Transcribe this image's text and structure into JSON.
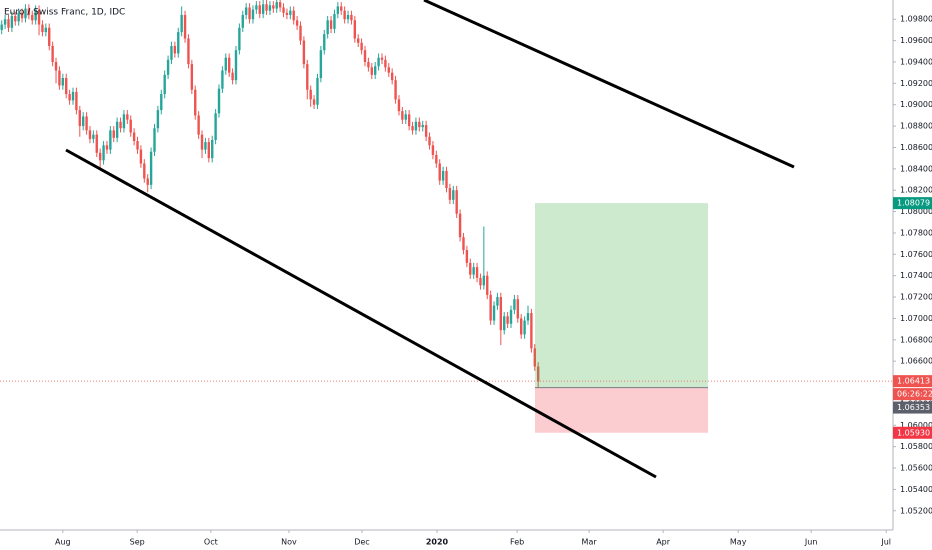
{
  "chart_data": {
    "type": "candlestick",
    "title": "Euro / Swiss Franc, 1D, IDC",
    "up_color": "#26a69a",
    "down_color": "#ef5350",
    "grid": false,
    "xlim": [
      0,
      263
    ],
    "ylim": [
      1.0502,
      1.0998
    ],
    "xticks": [
      {
        "value": 18.5,
        "label": "Aug"
      },
      {
        "value": 40.4,
        "label": "Sep"
      },
      {
        "value": 62.1,
        "label": "Oct"
      },
      {
        "value": 85.1,
        "label": "Nov"
      },
      {
        "value": 106.6,
        "label": "Dec"
      },
      {
        "value": 128.7,
        "label": "2020"
      },
      {
        "value": 152.3,
        "label": "Feb"
      },
      {
        "value": 173.5,
        "label": "Mar"
      },
      {
        "value": 195.3,
        "label": "Apr"
      },
      {
        "value": 217.4,
        "label": "May"
      },
      {
        "value": 238.9,
        "label": "Jun"
      },
      {
        "value": 261,
        "label": "Jul"
      }
    ],
    "yticks": [
      {
        "value": 1.052,
        "label": "1.05200"
      },
      {
        "value": 1.054,
        "label": "1.05400"
      },
      {
        "value": 1.056,
        "label": "1.05600"
      },
      {
        "value": 1.058,
        "label": "1.05800"
      },
      {
        "value": 1.06,
        "label": "1.06000"
      },
      {
        "value": 1.062,
        "label": "1.06200"
      },
      {
        "value": 1.064,
        "label": "1.06400"
      },
      {
        "value": 1.066,
        "label": "1.06600"
      },
      {
        "value": 1.068,
        "label": "1.06800"
      },
      {
        "value": 1.07,
        "label": "1.07000"
      },
      {
        "value": 1.072,
        "label": "1.07200"
      },
      {
        "value": 1.074,
        "label": "1.07400"
      },
      {
        "value": 1.076,
        "label": "1.07600"
      },
      {
        "value": 1.078,
        "label": "1.07800"
      },
      {
        "value": 1.08,
        "label": "1.08000"
      },
      {
        "value": 1.082,
        "label": "1.08200"
      },
      {
        "value": 1.084,
        "label": "1.08400"
      },
      {
        "value": 1.086,
        "label": "1.08600"
      },
      {
        "value": 1.088,
        "label": "1.08800"
      },
      {
        "value": 1.09,
        "label": "1.09000"
      },
      {
        "value": 1.092,
        "label": "1.09200"
      },
      {
        "value": 1.094,
        "label": "1.09400"
      },
      {
        "value": 1.096,
        "label": "1.09600"
      },
      {
        "value": 1.098,
        "label": "1.09800"
      }
    ],
    "open": [
      1.097,
      1.0975,
      1.098,
      1.0972,
      1.0983,
      1.0978,
      1.0986,
      1.0981,
      1.099,
      1.0984,
      1.0979,
      1.0989,
      1.0975,
      1.0968,
      1.0972,
      1.0955,
      1.094,
      1.0932,
      1.0918,
      1.0925,
      1.091,
      1.0904,
      1.0912,
      1.0895,
      1.088,
      1.0889,
      1.0876,
      1.0868,
      1.0872,
      1.0855,
      1.0848,
      1.0862,
      1.0858,
      1.0876,
      1.0869,
      1.0884,
      1.0878,
      1.0891,
      1.0886,
      1.0874,
      1.0866,
      1.0858,
      1.0845,
      1.0831,
      1.0825,
      1.0856,
      1.0878,
      1.0895,
      1.091,
      1.0928,
      1.0942,
      1.0955,
      1.0948,
      1.0968,
      1.0984,
      1.0962,
      1.0938,
      1.0914,
      1.089,
      1.0872,
      1.0858,
      1.0865,
      1.085,
      1.0867,
      1.0892,
      1.0915,
      1.0932,
      1.0944,
      1.093,
      1.0923,
      1.0951,
      1.0972,
      1.0984,
      1.0991,
      1.098,
      1.0989,
      1.0993,
      1.0985,
      1.0994,
      1.0988,
      1.0993,
      1.099,
      1.0996,
      1.0991,
      1.0986,
      1.0984,
      1.0988,
      1.0979,
      1.0974,
      1.096,
      1.0938,
      1.0914,
      1.0905,
      1.09,
      1.0925,
      1.0951,
      1.0966,
      1.0979,
      1.0971,
      1.0985,
      1.0992,
      1.0988,
      1.098,
      1.0984,
      1.0979,
      1.0962,
      1.0958,
      1.0951,
      1.094,
      1.0935,
      1.0928,
      1.0936,
      1.0944,
      1.0942,
      1.0935,
      1.093,
      1.0923,
      1.0905,
      1.0894,
      1.0886,
      1.0891,
      1.088,
      1.0876,
      1.0884,
      1.0879,
      1.0881,
      1.087,
      1.0862,
      1.0853,
      1.0845,
      1.0829,
      1.0838,
      1.0822,
      1.0811,
      1.082,
      1.0798,
      1.0776,
      1.0764,
      1.0752,
      1.0741,
      1.0748,
      1.0738,
      1.0731,
      1.074,
      1.0722,
      1.0698,
      1.0712,
      1.072,
      1.0689,
      1.0702,
      1.0695,
      1.0708,
      1.0718,
      1.07,
      1.0685,
      1.0698,
      1.0705,
      1.0672,
      1.0655
    ],
    "high": [
      1.0979,
      1.0984,
      1.0984,
      1.0987,
      1.0987,
      1.099,
      1.099,
      1.0994,
      1.0994,
      1.0988,
      1.0993,
      1.0993,
      1.0979,
      1.0976,
      1.0976,
      1.0959,
      1.0944,
      1.0936,
      1.0929,
      1.0929,
      1.0914,
      1.0916,
      1.0916,
      1.0899,
      1.0893,
      1.0893,
      1.088,
      1.0876,
      1.0876,
      1.0859,
      1.0866,
      1.0866,
      1.088,
      1.088,
      1.0888,
      1.0888,
      1.0895,
      1.0895,
      1.089,
      1.0878,
      1.087,
      1.0862,
      1.0849,
      1.0835,
      1.086,
      1.0882,
      1.0899,
      1.0914,
      1.0932,
      1.0946,
      1.0959,
      1.0959,
      1.0972,
      1.0992,
      1.0988,
      1.0966,
      1.0942,
      1.0918,
      1.0894,
      1.0876,
      1.0869,
      1.0869,
      1.0871,
      1.0896,
      1.0919,
      1.0936,
      1.0948,
      1.0948,
      1.0934,
      1.0955,
      1.0976,
      1.0988,
      1.0995,
      1.0995,
      1.0993,
      1.0997,
      1.0997,
      1.0998,
      1.0998,
      1.0997,
      1.0997,
      1.1,
      1.1,
      1.0995,
      1.099,
      1.0992,
      1.0992,
      1.0983,
      1.0978,
      1.0964,
      1.0942,
      1.0918,
      1.0909,
      1.0929,
      1.0955,
      1.097,
      1.0983,
      1.0983,
      1.0989,
      1.0996,
      1.0996,
      1.0992,
      1.0988,
      1.0988,
      1.0983,
      1.0966,
      1.0962,
      1.0955,
      1.0944,
      1.0939,
      1.094,
      1.0948,
      1.0948,
      1.0946,
      1.0939,
      1.0934,
      1.0927,
      1.0909,
      1.0898,
      1.0895,
      1.0895,
      1.0884,
      1.0888,
      1.0888,
      1.0885,
      1.0885,
      1.0874,
      1.0866,
      1.0857,
      1.0849,
      1.0842,
      1.0842,
      1.0826,
      1.0824,
      1.0824,
      1.0802,
      1.078,
      1.0768,
      1.0756,
      1.0752,
      1.0752,
      1.0742,
      1.0786,
      1.0744,
      1.0726,
      1.0716,
      1.0724,
      1.0724,
      1.0706,
      1.0706,
      1.0712,
      1.0722,
      1.0722,
      1.0704,
      1.0702,
      1.0712,
      1.0709,
      1.0676,
      1.0659
    ],
    "low": [
      1.0966,
      1.0971,
      1.0968,
      1.0968,
      1.0974,
      1.0974,
      1.0977,
      1.0977,
      1.098,
      1.0975,
      1.0975,
      1.0965,
      1.0964,
      1.0964,
      1.0951,
      1.0936,
      1.092,
      1.0914,
      1.0914,
      1.0906,
      1.09,
      1.09,
      1.0891,
      1.087,
      1.0876,
      1.0872,
      1.0864,
      1.0864,
      1.0851,
      1.084,
      1.0844,
      1.0854,
      1.0854,
      1.0865,
      1.0865,
      1.0874,
      1.0874,
      1.0882,
      1.087,
      1.0862,
      1.0854,
      1.0841,
      1.0827,
      1.0818,
      1.0821,
      1.0852,
      1.0874,
      1.0891,
      1.0906,
      1.0924,
      1.0938,
      1.0944,
      1.0944,
      1.0964,
      1.0958,
      1.0934,
      1.091,
      1.0886,
      1.0868,
      1.085,
      1.0854,
      1.0846,
      1.0846,
      1.0863,
      1.0888,
      1.0911,
      1.0928,
      1.0926,
      1.0919,
      1.0919,
      1.0947,
      1.0968,
      1.098,
      1.0976,
      1.0976,
      1.0985,
      1.0981,
      1.0981,
      1.0984,
      1.0984,
      1.0986,
      1.0986,
      1.0987,
      1.0982,
      1.098,
      1.098,
      1.0975,
      1.097,
      1.0956,
      1.0934,
      1.0905,
      1.0898,
      1.0896,
      1.0896,
      1.0921,
      1.0947,
      1.0962,
      1.0967,
      1.0967,
      1.0981,
      1.0984,
      1.0976,
      1.0976,
      1.0975,
      1.0958,
      1.0954,
      1.0947,
      1.0936,
      1.0931,
      1.0924,
      1.0924,
      1.0932,
      1.0938,
      1.0931,
      1.0926,
      1.0919,
      1.0901,
      1.089,
      1.0882,
      1.0882,
      1.0876,
      1.0872,
      1.0872,
      1.0875,
      1.0875,
      1.0866,
      1.0858,
      1.0849,
      1.0841,
      1.0825,
      1.0825,
      1.0818,
      1.0807,
      1.0807,
      1.0794,
      1.0772,
      1.076,
      1.0748,
      1.0737,
      1.0737,
      1.0734,
      1.0727,
      1.0727,
      1.0718,
      1.0694,
      1.0694,
      1.0708,
      1.0675,
      1.0685,
      1.0691,
      1.0691,
      1.0704,
      1.0696,
      1.0681,
      1.0681,
      1.0694,
      1.0668,
      1.0651,
      1.0635
    ],
    "close": [
      1.0975,
      1.098,
      1.0972,
      1.0983,
      1.0978,
      1.0986,
      1.0981,
      1.099,
      1.0984,
      1.0979,
      1.0989,
      1.0975,
      1.0968,
      1.0972,
      1.0955,
      1.094,
      1.0932,
      1.0918,
      1.0925,
      1.091,
      1.0904,
      1.0912,
      1.0895,
      1.088,
      1.0889,
      1.0876,
      1.0868,
      1.0872,
      1.0855,
      1.0848,
      1.0862,
      1.0858,
      1.0876,
      1.0869,
      1.0884,
      1.0878,
      1.0891,
      1.0886,
      1.0874,
      1.0866,
      1.0858,
      1.0845,
      1.0831,
      1.0825,
      1.0856,
      1.0878,
      1.0895,
      1.091,
      1.0928,
      1.0942,
      1.0955,
      1.0948,
      1.0968,
      1.0984,
      1.0962,
      1.0938,
      1.0914,
      1.089,
      1.0872,
      1.0858,
      1.0865,
      1.085,
      1.0867,
      1.0892,
      1.0915,
      1.0932,
      1.0944,
      1.093,
      1.0923,
      1.0951,
      1.0972,
      1.0984,
      1.0991,
      1.098,
      1.0989,
      1.0993,
      1.0985,
      1.0994,
      1.0988,
      1.0993,
      1.099,
      1.0996,
      1.0991,
      1.0986,
      1.0984,
      1.0988,
      1.0979,
      1.0974,
      1.096,
      1.0938,
      1.0914,
      1.0905,
      1.09,
      1.0925,
      1.0951,
      1.0966,
      1.0979,
      1.0971,
      1.0985,
      1.0992,
      1.0988,
      1.098,
      1.0984,
      1.0979,
      1.0962,
      1.0958,
      1.0951,
      1.094,
      1.0935,
      1.0928,
      1.0936,
      1.0944,
      1.0942,
      1.0935,
      1.093,
      1.0923,
      1.0905,
      1.0894,
      1.0886,
      1.0891,
      1.088,
      1.0876,
      1.0884,
      1.0879,
      1.0881,
      1.087,
      1.0862,
      1.0853,
      1.0845,
      1.0829,
      1.0838,
      1.0822,
      1.0811,
      1.082,
      1.0798,
      1.0776,
      1.0764,
      1.0752,
      1.0741,
      1.0748,
      1.0738,
      1.0731,
      1.074,
      1.0722,
      1.0698,
      1.0712,
      1.072,
      1.0689,
      1.0702,
      1.0695,
      1.0708,
      1.0718,
      1.07,
      1.0685,
      1.0698,
      1.0705,
      1.0672,
      1.0655,
      1.0641
    ],
    "last_price": 1.06413,
    "countdown": "06:26:22",
    "position": {
      "target": 1.08079,
      "entry": 1.06353,
      "stop": {
        "value": 1.0593,
        "label": "1.05930"
      }
    }
  }
}
